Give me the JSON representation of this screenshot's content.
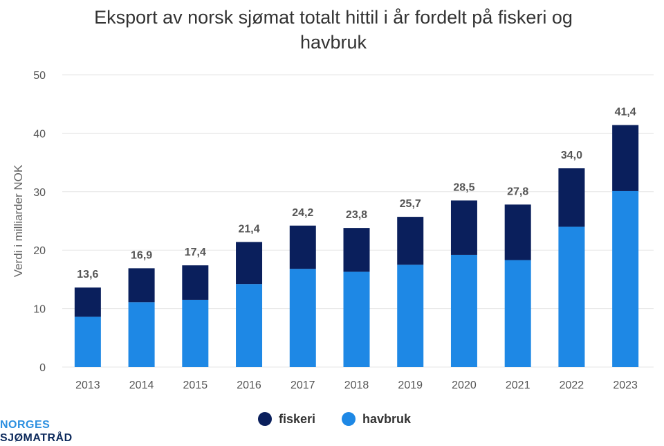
{
  "chart_data": {
    "type": "bar",
    "stacked": true,
    "title_lines": [
      "Eksport av norsk sjømat totalt hittil i år fordelt på fiskeri og",
      "havbruk"
    ],
    "xlabel": "",
    "ylabel": "Verdi i milliarder NOK",
    "ylim": [
      0,
      50
    ],
    "yticks": [
      0,
      10,
      20,
      30,
      40,
      50
    ],
    "grid": true,
    "legend_position": "bottom",
    "categories": [
      "2013",
      "2014",
      "2015",
      "2016",
      "2017",
      "2018",
      "2019",
      "2020",
      "2021",
      "2022",
      "2023"
    ],
    "series": [
      {
        "name": "havbruk",
        "color": "#1e88e5",
        "values": [
          8.6,
          11.1,
          11.5,
          14.2,
          16.8,
          16.3,
          17.5,
          19.2,
          18.3,
          24.0,
          30.1
        ]
      },
      {
        "name": "fiskeri",
        "color": "#0a1f5c",
        "values": [
          5.0,
          5.8,
          5.9,
          7.2,
          7.4,
          7.5,
          8.2,
          9.3,
          9.5,
          10.0,
          11.3
        ]
      }
    ],
    "totals": [
      "13,6",
      "16,9",
      "17,4",
      "21,4",
      "24,2",
      "23,8",
      "25,7",
      "28,5",
      "27,8",
      "34,0",
      "41,4"
    ],
    "legend_order": [
      "fiskeri",
      "havbruk"
    ]
  },
  "logo": {
    "line1": "NORGES",
    "line2": "SJØMATRÅD"
  }
}
